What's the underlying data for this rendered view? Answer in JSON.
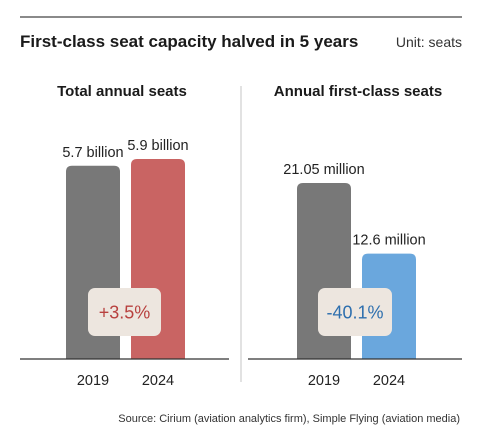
{
  "title": "First-class seat capacity halved in 5 years",
  "unit": "Unit: seats",
  "source": "Source: Cirium (aviation analytics firm), Simple Flying (aviation media)",
  "colors": {
    "gray_bar": "#787878",
    "red_bar": "#c96463",
    "blue_bar": "#6aa7dd",
    "red_text": "#b8413f",
    "blue_text": "#2e6fae",
    "badge_bg": "#ede6df",
    "divider": "#cfcfcf"
  },
  "chart_data": [
    {
      "type": "bar",
      "title": "Total annual seats",
      "categories": [
        "2019",
        "2024"
      ],
      "values": [
        5700000000,
        5900000000
      ],
      "value_labels": [
        "5.7 billion",
        "5.9 billion"
      ],
      "change_label": "+3.5%",
      "bar_colors": [
        "gray_bar",
        "red_bar"
      ],
      "change_color": "red_text"
    },
    {
      "type": "bar",
      "title": "Annual first-class seats",
      "categories": [
        "2019",
        "2024"
      ],
      "values": [
        21050000,
        12600000
      ],
      "value_labels": [
        "21.05 million",
        "12.6 million"
      ],
      "change_label": "-40.1%",
      "bar_colors": [
        "gray_bar",
        "blue_bar"
      ],
      "change_color": "blue_text"
    }
  ]
}
